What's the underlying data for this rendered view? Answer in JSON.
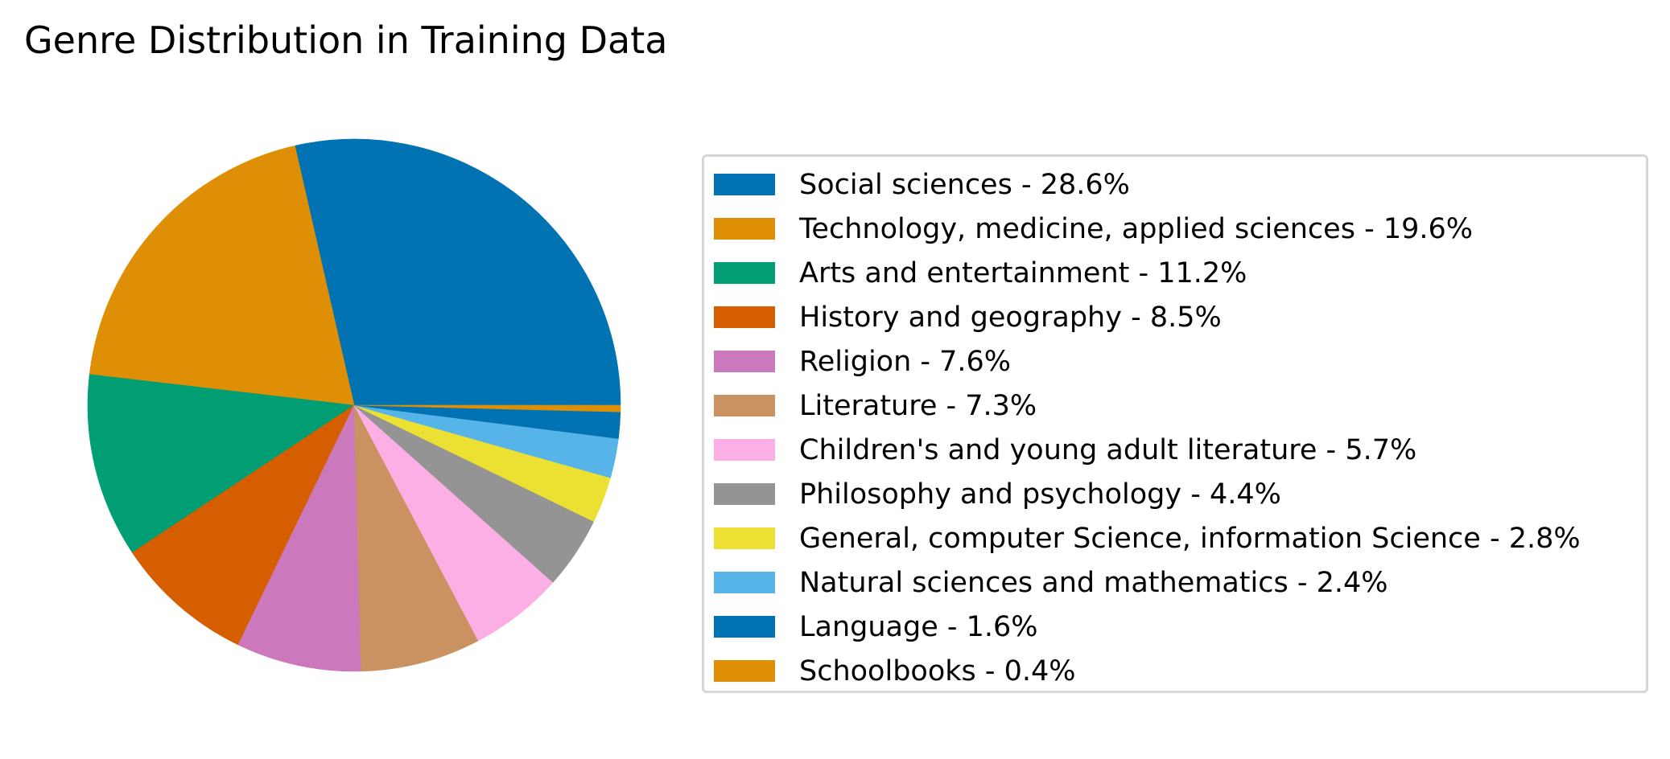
{
  "chart_data": {
    "type": "pie",
    "title": "Genre Distribution in Training Data",
    "start_angle_deg": 0,
    "direction": "counterclockwise",
    "legend_position": "right",
    "slices": [
      {
        "label": "Social sciences - 28.6%",
        "value": 28.6,
        "color": "#0173b2"
      },
      {
        "label": "Technology, medicine, applied sciences - 19.6%",
        "value": 19.6,
        "color": "#de8f05"
      },
      {
        "label": "Arts and entertainment - 11.2%",
        "value": 11.2,
        "color": "#029e73"
      },
      {
        "label": "History and geography - 8.5%",
        "value": 8.5,
        "color": "#d55e00"
      },
      {
        "label": "Religion - 7.6%",
        "value": 7.6,
        "color": "#cc78bc"
      },
      {
        "label": "Literature - 7.3%",
        "value": 7.3,
        "color": "#ca9161"
      },
      {
        "label": "Children's and young adult literature - 5.7%",
        "value": 5.7,
        "color": "#fbafe4"
      },
      {
        "label": "Philosophy and psychology - 4.4%",
        "value": 4.4,
        "color": "#949494"
      },
      {
        "label": "General, computer Science, information Science - 2.8%",
        "value": 2.8,
        "color": "#ece133"
      },
      {
        "label": "Natural sciences and mathematics - 2.4%",
        "value": 2.4,
        "color": "#56b4e9"
      },
      {
        "label": "Language - 1.6%",
        "value": 1.6,
        "color": "#0173b2"
      },
      {
        "label": "Schoolbooks - 0.4%",
        "value": 0.4,
        "color": "#de8f05"
      }
    ]
  }
}
